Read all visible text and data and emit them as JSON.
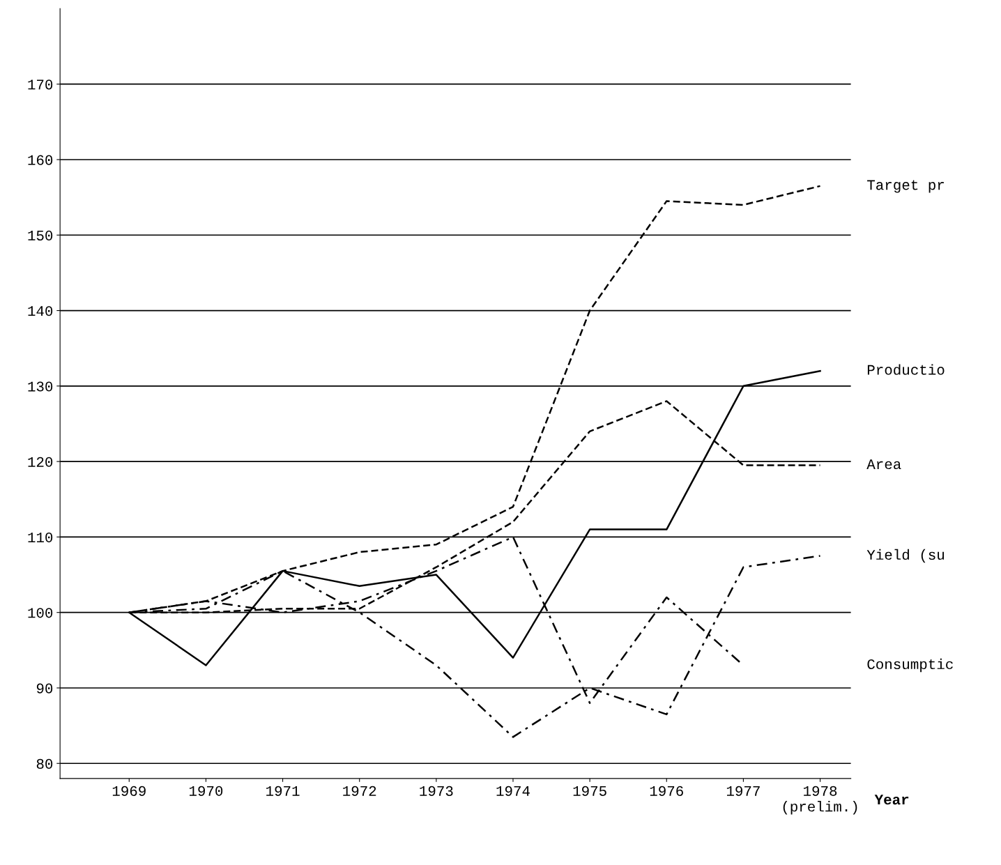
{
  "chart_data": {
    "type": "line",
    "xlabel": "Year",
    "categories": [
      "1969",
      "1970",
      "1971",
      "1972",
      "1973",
      "1974",
      "1975",
      "1976",
      "1977",
      "1978\n(prelim.)"
    ],
    "series": [
      {
        "name": "Target pr",
        "color": "#000000",
        "line_style": "dashed",
        "values": [
          100,
          101.5,
          105.5,
          108,
          109,
          114,
          140,
          154.5,
          154,
          156.5
        ]
      },
      {
        "name": "Productio",
        "color": "#000000",
        "line_style": "solid",
        "values": [
          100,
          93,
          105.5,
          103.5,
          105,
          94,
          111,
          111,
          130,
          132
        ]
      },
      {
        "name": "Area",
        "color": "#000000",
        "line_style": "dashed",
        "values": [
          100,
          100,
          100.5,
          100.5,
          106,
          112,
          124,
          128,
          119.5,
          119.5
        ]
      },
      {
        "name": "Yield (su",
        "color": "#000000",
        "line_style": "dotted",
        "values": [
          100,
          100.5,
          105.5,
          100,
          93,
          83.5,
          90,
          86.5,
          106,
          107.5
        ]
      },
      {
        "name": "Consumptic",
        "color": "#000000",
        "line_style": "dotted",
        "values": [
          100,
          101.5,
          100,
          101.5,
          105.5,
          110,
          88,
          102,
          93,
          null
        ]
      }
    ],
    "ylim": [
      78,
      180
    ],
    "yticks": [
      80,
      90,
      100,
      110,
      120,
      130,
      140,
      150,
      160,
      170
    ],
    "grid": "y",
    "legend": false,
    "marker": "none"
  }
}
